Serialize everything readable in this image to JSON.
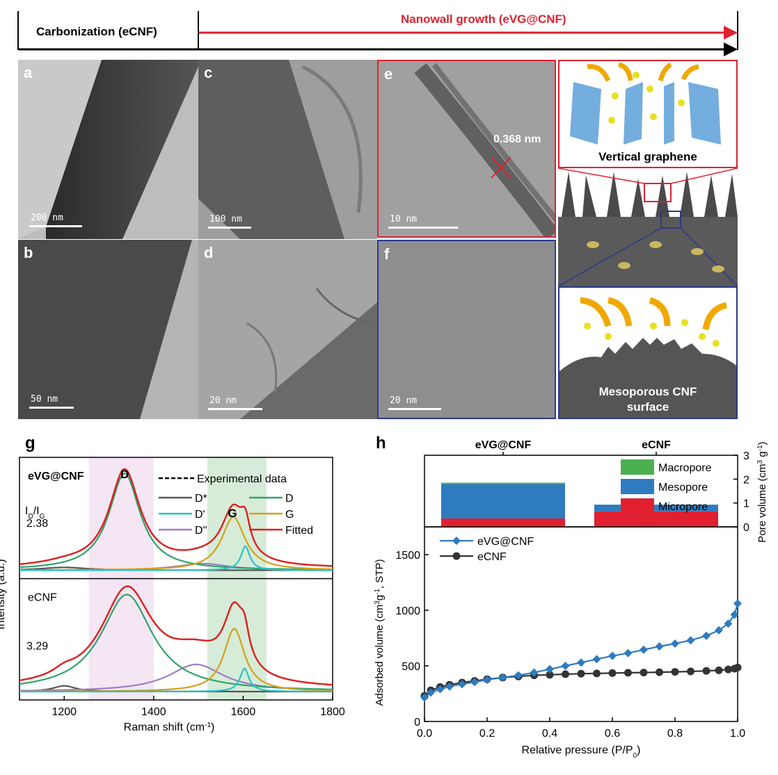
{
  "header": {
    "left_label": "Carbonization (eCNF)",
    "right_label": "Nanowall growth (eVG@CNF)",
    "right_color": "#e02030"
  },
  "panels": {
    "a": {
      "label": "a",
      "scale": "200 nm"
    },
    "b": {
      "label": "b",
      "scale": "50 nm"
    },
    "c": {
      "label": "c",
      "scale": "100 nm"
    },
    "d": {
      "label": "d",
      "scale": "20 nm"
    },
    "e": {
      "label": "e",
      "scale": "10 nm",
      "annotation": "0.368 nm"
    },
    "f": {
      "label": "f",
      "scale": "20 nm"
    }
  },
  "schematic": {
    "top_caption": "Vertical graphene",
    "bottom_caption_line1": "Mesoporous CNF",
    "bottom_caption_line2": "surface"
  },
  "colors": {
    "red_frame": "#e02030",
    "blue_frame": "#2a3a8c"
  },
  "chart_data": [
    {
      "id": "g",
      "type": "line",
      "panel_label": "g",
      "xlabel": "Raman shift (cm",
      "xlabel_sup": "-1",
      "xlabel_end": ")",
      "ylabel": "Intensity (a.u.)",
      "xlim": [
        1100,
        1800
      ],
      "xticks": [
        1200,
        1400,
        1600,
        1800
      ],
      "shaded_bands": [
        {
          "name": "D band",
          "range": [
            1255,
            1400
          ],
          "color": "#f4e6f3"
        },
        {
          "name": "G band",
          "range": [
            1520,
            1652
          ],
          "color": "#d6ecd8"
        }
      ],
      "peak_labels": [
        "D",
        "G"
      ],
      "ratio_label_main": "I",
      "ratio_label_sub1": "D",
      "ratio_label_sep": "/I",
      "ratio_label_sub2": "G",
      "legend": [
        {
          "name": "Experimental data",
          "color": "#000000",
          "style": "dashed"
        },
        {
          "name": "D*",
          "color": "#555555"
        },
        {
          "name": "D",
          "color": "#2ea36c"
        },
        {
          "name": "D'",
          "color": "#2ec2c8"
        },
        {
          "name": "G",
          "color": "#d4a017"
        },
        {
          "name": "D''",
          "color": "#a07cc8"
        },
        {
          "name": "Fitted",
          "color": "#e02020"
        }
      ],
      "subplots": [
        {
          "sample": "eVG@CNF",
          "ratio": "2.38",
          "peaks": [
            {
              "name": "D*",
              "center": 1200,
              "width": 60,
              "height": 0.03
            },
            {
              "name": "D",
              "center": 1335,
              "width": 42,
              "height": 1.0
            },
            {
              "name": "D''",
              "center": 1510,
              "width": 70,
              "height": 0.07
            },
            {
              "name": "G",
              "center": 1578,
              "width": 32,
              "height": 0.55
            },
            {
              "name": "D'",
              "center": 1605,
              "width": 12,
              "height": 0.25
            }
          ]
        },
        {
          "sample": "eCNF",
          "ratio": "3.29",
          "peaks": [
            {
              "name": "D*",
              "center": 1200,
              "width": 30,
              "height": 0.06
            },
            {
              "name": "D",
              "center": 1340,
              "width": 70,
              "height": 1.0
            },
            {
              "name": "D''",
              "center": 1495,
              "width": 75,
              "height": 0.28
            },
            {
              "name": "G",
              "center": 1580,
              "width": 28,
              "height": 0.65
            },
            {
              "name": "D'",
              "center": 1603,
              "width": 12,
              "height": 0.24
            }
          ]
        }
      ]
    },
    {
      "id": "h_top",
      "type": "bar",
      "panel_label": "h",
      "categories": [
        "eVG@CNF",
        "eCNF"
      ],
      "series": [
        {
          "name": "Micropore",
          "color": "#e02030",
          "values": [
            0.35,
            0.65
          ]
        },
        {
          "name": "Mesopore",
          "color": "#2f7bbf",
          "values": [
            1.45,
            0.28
          ]
        },
        {
          "name": "Macropore",
          "color": "#4caf50",
          "values": [
            0.05,
            0.0
          ]
        }
      ],
      "ylabel": "Pore volume (cm",
      "ylabel_sup": "3",
      "ylabel_mid": " g",
      "ylabel_sup2": "-1",
      "ylabel_end": ")",
      "ylim": [
        0,
        3
      ],
      "yticks": [
        0,
        1,
        2,
        3
      ],
      "legend_order": [
        "Macropore",
        "Mesopore",
        "Micropore"
      ]
    },
    {
      "id": "h_bottom",
      "type": "line",
      "xlabel": "Relative pressure (P/P",
      "xlabel_sub": "0",
      "xlabel_end": ")",
      "ylabel": "Adsorbed volume (cm",
      "ylabel_sup": "3",
      "ylabel_mid": "g",
      "ylabel_sup2": "-1",
      "ylabel_end": ", STP)",
      "xlim": [
        0,
        1.0
      ],
      "ylim": [
        0,
        1750
      ],
      "xticks": [
        0.0,
        0.2,
        0.4,
        0.6,
        0.8,
        1.0
      ],
      "yticks": [
        0,
        500,
        1000,
        1500
      ],
      "series": [
        {
          "name": "eVG@CNF",
          "color": "#2f7bbf",
          "marker": "diamond",
          "x": [
            0.0,
            0.02,
            0.05,
            0.08,
            0.12,
            0.16,
            0.2,
            0.25,
            0.3,
            0.35,
            0.4,
            0.45,
            0.5,
            0.55,
            0.6,
            0.65,
            0.7,
            0.75,
            0.8,
            0.85,
            0.9,
            0.94,
            0.97,
            0.99,
            1.0
          ],
          "y": [
            215,
            260,
            290,
            315,
            335,
            355,
            375,
            395,
            415,
            440,
            470,
            500,
            530,
            560,
            590,
            615,
            645,
            675,
            700,
            730,
            770,
            820,
            880,
            960,
            1060
          ]
        },
        {
          "name": "eCNF",
          "color": "#333333",
          "marker": "circle",
          "x": [
            0.0,
            0.02,
            0.05,
            0.08,
            0.12,
            0.16,
            0.2,
            0.25,
            0.3,
            0.35,
            0.4,
            0.45,
            0.5,
            0.55,
            0.6,
            0.65,
            0.7,
            0.75,
            0.8,
            0.85,
            0.9,
            0.94,
            0.97,
            0.99,
            1.0
          ],
          "y": [
            230,
            280,
            310,
            330,
            350,
            365,
            380,
            395,
            405,
            415,
            420,
            425,
            430,
            432,
            435,
            438,
            440,
            443,
            446,
            450,
            455,
            460,
            468,
            475,
            485
          ]
        }
      ]
    }
  ]
}
